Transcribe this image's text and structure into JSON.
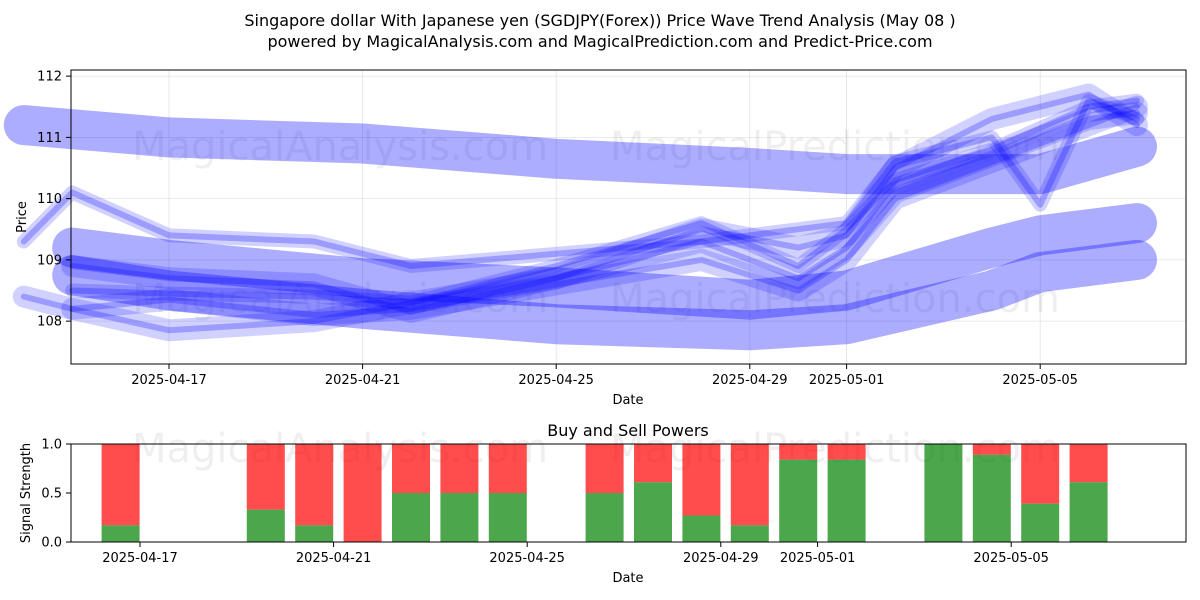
{
  "title_line1": "Singapore dollar With Japanese yen (SGDJPY(Forex)) Price Wave Trend Analysis (May 08 )",
  "title_line2": "powered by MagicalAnalysis.com and MagicalPrediction.com and Predict-Price.com",
  "watermarks": [
    "MagicalAnalysis.com",
    "MagicalPrediction.com"
  ],
  "colors": {
    "wave": "#0000ff",
    "buy": "#008000",
    "sell": "#ff0000"
  },
  "chart_data": [
    {
      "type": "line",
      "title": "",
      "xlabel": "Date",
      "ylabel": "Price",
      "ylim": [
        107.3,
        112.1
      ],
      "grid": true,
      "x_ticks": [
        "2025-04-17",
        "2025-04-21",
        "2025-04-25",
        "2025-04-29",
        "2025-05-01",
        "2025-05-05"
      ],
      "y_ticks": [
        108,
        109,
        110,
        111,
        112
      ],
      "series": [
        {
          "x": [
            "2025-04-14",
            "2025-04-17",
            "2025-04-21",
            "2025-04-25",
            "2025-04-29",
            "2025-05-01",
            "2025-05-05",
            "2025-05-07"
          ],
          "values": [
            111.2,
            111.0,
            110.9,
            110.65,
            110.5,
            110.4,
            110.4,
            110.85
          ]
        },
        {
          "x": [
            "2025-04-15",
            "2025-04-17",
            "2025-04-21",
            "2025-04-25",
            "2025-04-29",
            "2025-05-01",
            "2025-05-04",
            "2025-05-05",
            "2025-05-07"
          ],
          "values": [
            109.2,
            109.0,
            108.7,
            108.55,
            108.35,
            108.5,
            109.2,
            109.4,
            109.6
          ]
        },
        {
          "x": [
            "2025-04-15",
            "2025-04-17",
            "2025-04-21",
            "2025-04-25",
            "2025-04-29",
            "2025-05-01",
            "2025-05-04",
            "2025-05-05",
            "2025-05-07"
          ],
          "values": [
            108.75,
            108.5,
            108.2,
            107.95,
            107.85,
            107.95,
            108.5,
            108.8,
            109.0
          ]
        },
        {
          "x": [
            "2025-04-15",
            "2025-04-17",
            "2025-04-20",
            "2025-04-22",
            "2025-04-25",
            "2025-04-28",
            "2025-04-30",
            "2025-05-01",
            "2025-05-02",
            "2025-05-04",
            "2025-05-06",
            "2025-05-07"
          ],
          "values": [
            108.9,
            108.7,
            108.6,
            108.15,
            108.7,
            109.3,
            108.7,
            109.2,
            110.1,
            110.7,
            111.3,
            111.4
          ]
        },
        {
          "x": [
            "2025-04-15",
            "2025-04-17",
            "2025-04-20",
            "2025-04-22",
            "2025-04-25",
            "2025-04-28",
            "2025-04-30",
            "2025-05-01",
            "2025-05-02",
            "2025-05-04",
            "2025-05-06",
            "2025-05-07"
          ],
          "values": [
            108.5,
            108.45,
            108.4,
            108.3,
            108.9,
            109.6,
            108.9,
            109.5,
            110.3,
            110.8,
            111.5,
            111.6
          ]
        },
        {
          "x": [
            "2025-04-15",
            "2025-04-17",
            "2025-04-20",
            "2025-04-22",
            "2025-04-25",
            "2025-04-28",
            "2025-04-30",
            "2025-05-01",
            "2025-05-02",
            "2025-05-04",
            "2025-05-06",
            "2025-05-07"
          ],
          "values": [
            108.2,
            108.35,
            108.1,
            108.2,
            108.6,
            109.0,
            108.5,
            109.0,
            110.0,
            110.6,
            111.2,
            111.5
          ]
        },
        {
          "x": [
            "2025-04-14",
            "2025-04-15",
            "2025-04-17",
            "2025-04-20",
            "2025-04-22",
            "2025-04-25",
            "2025-04-28",
            "2025-04-30",
            "2025-05-01",
            "2025-05-02",
            "2025-05-04",
            "2025-05-05",
            "2025-05-06",
            "2025-05-07"
          ],
          "values": [
            109.3,
            110.1,
            109.4,
            109.3,
            108.9,
            109.1,
            109.3,
            109.5,
            109.6,
            110.6,
            111.0,
            109.9,
            111.6,
            111.3
          ]
        },
        {
          "x": [
            "2025-04-14",
            "2025-04-15",
            "2025-04-17",
            "2025-04-20",
            "2025-04-22",
            "2025-04-25",
            "2025-04-28",
            "2025-04-30",
            "2025-05-01",
            "2025-05-02",
            "2025-05-04",
            "2025-05-06",
            "2025-05-07"
          ],
          "values": [
            108.4,
            108.2,
            107.85,
            108.0,
            108.3,
            108.7,
            109.5,
            109.2,
            109.4,
            110.5,
            111.3,
            111.7,
            111.2
          ]
        }
      ]
    },
    {
      "type": "bar",
      "title": "Buy and Sell Powers",
      "xlabel": "Date",
      "ylabel": "Signal Strength",
      "ylim": [
        0,
        1
      ],
      "x_ticks": [
        "2025-04-17",
        "2025-04-21",
        "2025-04-25",
        "2025-04-29",
        "2025-05-01",
        "2025-05-05"
      ],
      "y_ticks": [
        0.0,
        0.5,
        1.0
      ],
      "categories": [
        "2025-04-16",
        "2025-04-19",
        "2025-04-20",
        "2025-04-21",
        "2025-04-22",
        "2025-04-23",
        "2025-04-24",
        "2025-04-26",
        "2025-04-27",
        "2025-04-28",
        "2025-04-29",
        "2025-04-30",
        "2025-05-01",
        "2025-05-03",
        "2025-05-04",
        "2025-05-05",
        "2025-05-06"
      ],
      "series": [
        {
          "name": "Buy",
          "values": [
            0.17,
            0.33,
            0.17,
            0.0,
            0.5,
            0.5,
            0.5,
            0.5,
            0.61,
            0.27,
            0.17,
            0.84,
            0.84,
            1.0,
            0.89,
            0.39,
            0.61
          ]
        },
        {
          "name": "Sell",
          "values": [
            0.83,
            0.67,
            0.83,
            1.0,
            0.5,
            0.5,
            0.5,
            0.5,
            0.39,
            0.73,
            0.83,
            0.16,
            0.16,
            0.0,
            0.11,
            0.61,
            0.39
          ]
        }
      ]
    }
  ]
}
